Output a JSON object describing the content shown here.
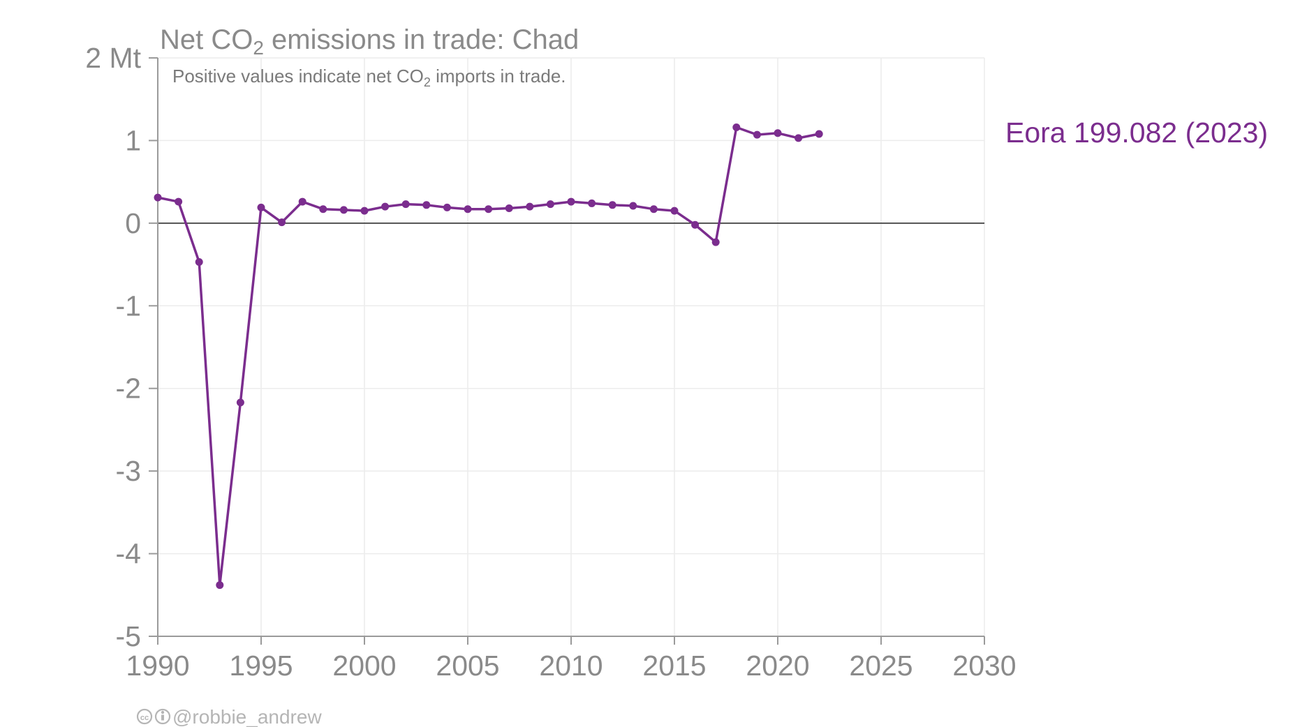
{
  "chart_data": {
    "type": "line",
    "title": "Net CO2 emissions in trade: Chad",
    "title_parts": {
      "before": "Net CO",
      "subscript": "2",
      "after": " emissions in trade: Chad"
    },
    "subtitle": "Positive values indicate net CO2 imports in trade.",
    "subtitle_parts": {
      "before": "Positive values indicate net CO",
      "subscript": "2",
      "after": " imports in trade."
    },
    "xlim": [
      1990,
      2030
    ],
    "ylim": [
      -5,
      2
    ],
    "x_ticks": [
      1990,
      1995,
      2000,
      2005,
      2010,
      2015,
      2020,
      2025,
      2030
    ],
    "y_ticks": [
      {
        "value": 2,
        "label": "2 Mt"
      },
      {
        "value": 1,
        "label": "1"
      },
      {
        "value": 0,
        "label": "0"
      },
      {
        "value": -1,
        "label": "-1"
      },
      {
        "value": -2,
        "label": "-2"
      },
      {
        "value": -3,
        "label": "-3"
      },
      {
        "value": -4,
        "label": "-4"
      },
      {
        "value": -5,
        "label": "-5"
      }
    ],
    "grid": true,
    "series": [
      {
        "name": "Eora 199.082 (2023)",
        "color": "#7b2d8e",
        "x": [
          1990,
          1991,
          1992,
          1993,
          1994,
          1995,
          1996,
          1997,
          1998,
          1999,
          2000,
          2001,
          2002,
          2003,
          2004,
          2005,
          2006,
          2007,
          2008,
          2009,
          2010,
          2011,
          2012,
          2013,
          2014,
          2015,
          2016,
          2017,
          2018,
          2019,
          2020,
          2021,
          2022
        ],
        "values": [
          0.31,
          0.26,
          -0.47,
          -4.38,
          -2.17,
          0.19,
          0.01,
          0.26,
          0.17,
          0.16,
          0.15,
          0.2,
          0.23,
          0.22,
          0.19,
          0.17,
          0.17,
          0.18,
          0.2,
          0.23,
          0.26,
          0.24,
          0.22,
          0.21,
          0.17,
          0.15,
          -0.02,
          -0.23,
          1.16,
          1.07,
          1.09,
          1.03,
          1.08
        ]
      }
    ]
  },
  "credit": {
    "icon_cc": "creative-commons-icon",
    "icon_by": "attribution-icon",
    "text": "@robbie_andrew"
  }
}
